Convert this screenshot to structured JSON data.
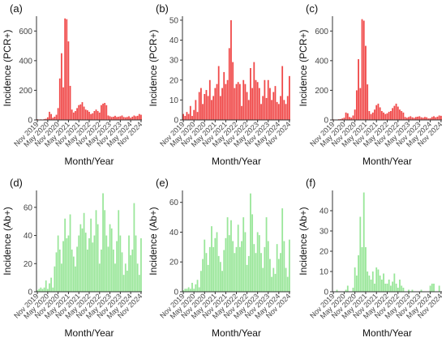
{
  "colors": {
    "pcr": "#f04848",
    "ab": "#99e699",
    "axis": "#333333",
    "text": "#111111"
  },
  "chart_data": [
    {
      "type": "bar",
      "panel_label": "(a)",
      "title": "",
      "xlabel": "Month/Year",
      "ylabel": "Incidence (PCR+)",
      "ylim": [
        0,
        700
      ],
      "yticks": [
        0,
        200,
        400,
        600
      ],
      "xticks": [
        "Nov 2019",
        "May 2020",
        "Nov 2020",
        "May 2021",
        "Nov 2021",
        "May 2022",
        "Nov 2022",
        "May 2023",
        "Nov 2023",
        "May 2024",
        "Nov 2024"
      ],
      "categories_start": "Nov 2019",
      "categories_end": "Nov 2024",
      "color": "#f04848",
      "values": [
        5,
        3,
        4,
        2,
        6,
        8,
        18,
        55,
        40,
        15,
        22,
        35,
        80,
        280,
        450,
        220,
        685,
        680,
        530,
        230,
        70,
        50,
        60,
        80,
        100,
        105,
        120,
        90,
        70,
        65,
        55,
        40,
        45,
        60,
        70,
        60,
        50,
        100,
        110,
        115,
        100,
        30,
        25,
        20,
        22,
        28,
        20,
        22,
        25,
        30,
        20,
        18,
        20,
        25,
        15,
        22,
        30,
        25,
        28,
        40,
        35
      ]
    },
    {
      "type": "bar",
      "panel_label": "(b)",
      "title": "",
      "xlabel": "Month/Year",
      "ylabel": "Incidence (PCR+)",
      "ylim": [
        0,
        52
      ],
      "yticks": [
        0,
        10,
        20,
        30,
        40,
        50
      ],
      "xticks": [
        "Nov 2019",
        "May 2020",
        "Nov 2020",
        "May 2021",
        "Nov 2021",
        "May 2022",
        "Nov 2022",
        "May 2023",
        "Nov 2023",
        "May 2024",
        "Nov 2024"
      ],
      "categories_start": "Nov 2019",
      "categories_end": "Nov 2024",
      "color": "#f04848",
      "values": [
        3,
        2,
        4,
        3,
        7,
        2,
        5,
        10,
        4,
        14,
        16,
        8,
        13,
        15,
        12,
        20,
        10,
        12,
        16,
        18,
        27,
        12,
        16,
        24,
        18,
        20,
        36,
        50,
        29,
        16,
        18,
        19,
        18,
        7,
        20,
        18,
        14,
        10,
        26,
        16,
        29,
        20,
        19,
        16,
        8,
        12,
        20,
        11,
        20,
        16,
        10,
        14,
        17,
        9,
        8,
        12,
        27,
        10,
        8,
        12,
        22
      ]
    },
    {
      "type": "bar",
      "panel_label": "(c)",
      "title": "",
      "xlabel": "Month/Year",
      "ylabel": "Incidence (PCR+)",
      "ylim": [
        0,
        700
      ],
      "yticks": [
        0,
        200,
        400,
        600
      ],
      "xticks": [
        "Nov 2019",
        "May 2020",
        "Nov 2020",
        "May 2021",
        "Nov 2021",
        "May 2022",
        "Nov 2022",
        "May 2023",
        "Nov 2023",
        "May 2024",
        "Nov 2024"
      ],
      "categories_start": "Nov 2019",
      "categories_end": "Nov 2024",
      "color": "#f04848",
      "values": [
        4,
        3,
        2,
        5,
        6,
        10,
        15,
        50,
        45,
        20,
        15,
        30,
        70,
        200,
        410,
        215,
        680,
        670,
        500,
        240,
        60,
        40,
        50,
        70,
        100,
        110,
        85,
        60,
        50,
        40,
        45,
        55,
        60,
        80,
        95,
        110,
        90,
        70,
        60,
        50,
        20,
        15,
        20,
        25,
        18,
        14,
        20,
        22,
        25,
        18,
        15,
        20,
        18,
        10,
        12,
        20,
        25,
        18,
        22,
        30,
        28
      ]
    },
    {
      "type": "bar",
      "panel_label": "(d)",
      "title": "",
      "xlabel": "Month/Year",
      "ylabel": "Incidence (Ab+)",
      "ylim": [
        0,
        72
      ],
      "yticks": [
        0,
        20,
        40,
        60
      ],
      "xticks": [
        "Nov 2019",
        "May 2020",
        "Nov 2020",
        "May 2021",
        "Nov 2021",
        "May 2022",
        "Nov 2022",
        "May 2023",
        "Nov 2023",
        "May 2024",
        "Nov 2024"
      ],
      "categories_start": "Nov 2019",
      "categories_end": "Nov 2024",
      "color": "#99e699",
      "values": [
        1,
        2,
        3,
        2,
        3,
        8,
        2,
        6,
        10,
        3,
        18,
        28,
        40,
        30,
        20,
        36,
        52,
        38,
        40,
        55,
        30,
        25,
        18,
        32,
        40,
        48,
        45,
        56,
        42,
        30,
        38,
        52,
        35,
        40,
        58,
        48,
        20,
        30,
        70,
        58,
        40,
        32,
        48,
        45,
        30,
        20,
        36,
        58,
        40,
        28,
        12,
        20,
        15,
        40,
        26,
        30,
        63,
        40,
        20,
        12,
        38
      ]
    },
    {
      "type": "bar",
      "panel_label": "(e)",
      "title": "",
      "xlabel": "Month/Year",
      "ylabel": "Incidence (Ab+)",
      "ylim": [
        0,
        68
      ],
      "yticks": [
        0,
        20,
        40,
        60
      ],
      "xticks": [
        "Nov 2019",
        "May 2020",
        "Nov 2020",
        "May 2021",
        "Nov 2021",
        "May 2022",
        "Nov 2022",
        "May 2023",
        "Nov 2023",
        "May 2024",
        "Nov 2024"
      ],
      "categories_start": "Nov 2019",
      "categories_end": "Nov 2024",
      "color": "#99e699",
      "values": [
        1,
        2,
        2,
        3,
        2,
        6,
        2,
        5,
        8,
        3,
        14,
        22,
        35,
        26,
        18,
        30,
        44,
        30,
        36,
        40,
        24,
        20,
        14,
        28,
        36,
        50,
        38,
        48,
        34,
        26,
        30,
        45,
        30,
        34,
        50,
        40,
        18,
        24,
        66,
        52,
        32,
        26,
        40,
        38,
        26,
        16,
        30,
        50,
        34,
        22,
        10,
        16,
        12,
        32,
        22,
        26,
        56,
        34,
        16,
        10,
        35
      ]
    },
    {
      "type": "bar",
      "panel_label": "(f)",
      "title": "",
      "xlabel": "Month/Year",
      "ylabel": "Incidence (Ab+)",
      "ylim": [
        0,
        50
      ],
      "yticks": [
        0,
        10,
        20,
        30,
        40
      ],
      "xticks": [
        "Nov 2019",
        "May 2020",
        "Nov 2020",
        "May 2021",
        "Nov 2021",
        "May 2022",
        "Nov 2022",
        "May 2023",
        "Nov 2023",
        "May 2024",
        "Nov 2024"
      ],
      "categories_start": "Nov 2019",
      "categories_end": "Nov 2024",
      "color": "#99e699",
      "values": [
        0,
        0,
        1,
        0,
        0,
        0,
        0,
        1,
        3,
        0,
        0,
        2,
        12,
        8,
        18,
        37,
        22,
        49,
        22,
        10,
        8,
        6,
        10,
        4,
        12,
        11,
        8,
        6,
        9,
        4,
        4,
        6,
        3,
        5,
        9,
        4,
        2,
        6,
        3,
        2,
        0,
        0,
        1,
        0,
        1,
        0,
        0,
        0,
        0,
        1,
        0,
        0,
        0,
        0,
        3,
        4,
        4,
        0,
        0,
        3,
        0
      ]
    }
  ]
}
